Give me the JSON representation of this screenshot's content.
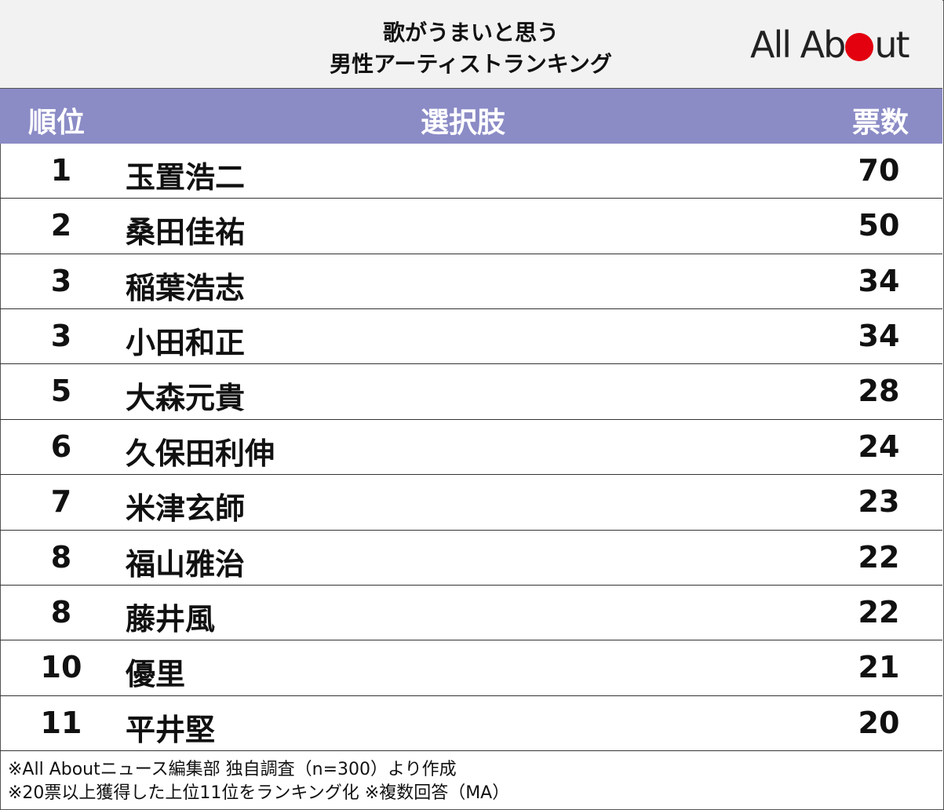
{
  "header": {
    "title_line1": "歌がうまいと思う",
    "title_line2": "男性アーティストランキング",
    "logo": {
      "left": "All Ab",
      "right": "ut"
    }
  },
  "table": {
    "columns": [
      "順位",
      "選択肢",
      "票数"
    ],
    "rows": [
      [
        1,
        "玉置浩二",
        70
      ],
      [
        2,
        "桑田佳祐",
        50
      ],
      [
        3,
        "稲葉浩志",
        34
      ],
      [
        3,
        "小田和正",
        34
      ],
      [
        5,
        "大森元貴",
        28
      ],
      [
        6,
        "久保田利伸",
        24
      ],
      [
        7,
        "米津玄師",
        23
      ],
      [
        8,
        "福山雅治",
        22
      ],
      [
        8,
        "藤井風",
        22
      ],
      [
        10,
        "優里",
        21
      ],
      [
        11,
        "平井堅",
        20
      ]
    ]
  },
  "footer": {
    "notes": [
      "※All Aboutニュース編集部 独自調査（n=300）より作成",
      "※20票以上獲得した上位11位をランキング化 ※複数回答（MA）"
    ]
  }
}
